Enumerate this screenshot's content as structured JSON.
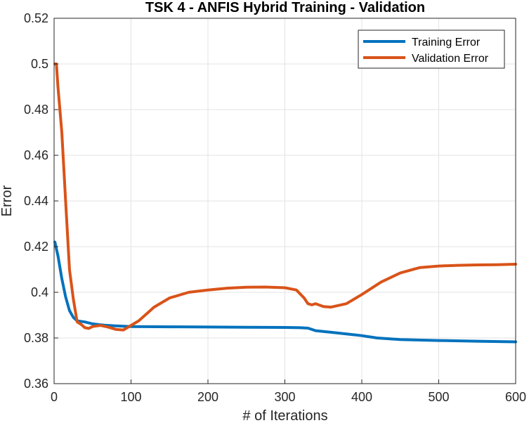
{
  "chart_data": {
    "type": "line",
    "title": "TSK 4 - ANFIS Hybrid Training - Validation",
    "xlabel": "# of Iterations",
    "ylabel": "Error",
    "xlim": [
      0,
      600
    ],
    "ylim": [
      0.36,
      0.52
    ],
    "xticks": [
      0,
      100,
      200,
      300,
      400,
      500,
      600
    ],
    "yticks": [
      0.36,
      0.38,
      0.4,
      0.42,
      0.44,
      0.46,
      0.48,
      0.5,
      0.52
    ],
    "xtick_labels": [
      "0",
      "100",
      "200",
      "300",
      "400",
      "500",
      "600"
    ],
    "ytick_labels": [
      "0.36",
      "0.38",
      "0.4",
      "0.42",
      "0.44",
      "0.46",
      "0.48",
      "0.5",
      "0.52"
    ],
    "grid": true,
    "legend_position": "top-right",
    "series": [
      {
        "name": "Training Error",
        "color": "#0072BD",
        "x": [
          1,
          5,
          10,
          15,
          20,
          25,
          30,
          40,
          50,
          60,
          65,
          70,
          80,
          100,
          150,
          200,
          250,
          300,
          320,
          330,
          340,
          360,
          380,
          400,
          420,
          450,
          500,
          550,
          600
        ],
        "y": [
          0.422,
          0.416,
          0.406,
          0.398,
          0.392,
          0.389,
          0.3875,
          0.387,
          0.3862,
          0.3858,
          0.3856,
          0.3855,
          0.3853,
          0.385,
          0.3849,
          0.3848,
          0.3847,
          0.3846,
          0.3845,
          0.3843,
          0.3832,
          0.3825,
          0.3818,
          0.381,
          0.38,
          0.3793,
          0.3789,
          0.3786,
          0.3783
        ]
      },
      {
        "name": "Validation Error",
        "color": "#D95319",
        "x": [
          1,
          3,
          5,
          10,
          15,
          20,
          25,
          30,
          35,
          40,
          45,
          50,
          60,
          70,
          80,
          90,
          95,
          100,
          110,
          120,
          130,
          150,
          175,
          200,
          225,
          250,
          275,
          300,
          315,
          325,
          330,
          335,
          340,
          350,
          360,
          380,
          400,
          425,
          450,
          475,
          500,
          525,
          550,
          575,
          600
        ],
        "y": [
          0.5,
          0.5,
          0.49,
          0.47,
          0.44,
          0.41,
          0.397,
          0.387,
          0.386,
          0.3845,
          0.3842,
          0.385,
          0.3855,
          0.3848,
          0.3838,
          0.3835,
          0.3845,
          0.3855,
          0.3875,
          0.3905,
          0.3935,
          0.3975,
          0.4,
          0.401,
          0.4018,
          0.4022,
          0.4023,
          0.402,
          0.401,
          0.3975,
          0.395,
          0.3945,
          0.395,
          0.3938,
          0.3935,
          0.395,
          0.399,
          0.4045,
          0.4085,
          0.4108,
          0.4115,
          0.4118,
          0.412,
          0.4121,
          0.4123
        ]
      }
    ]
  }
}
